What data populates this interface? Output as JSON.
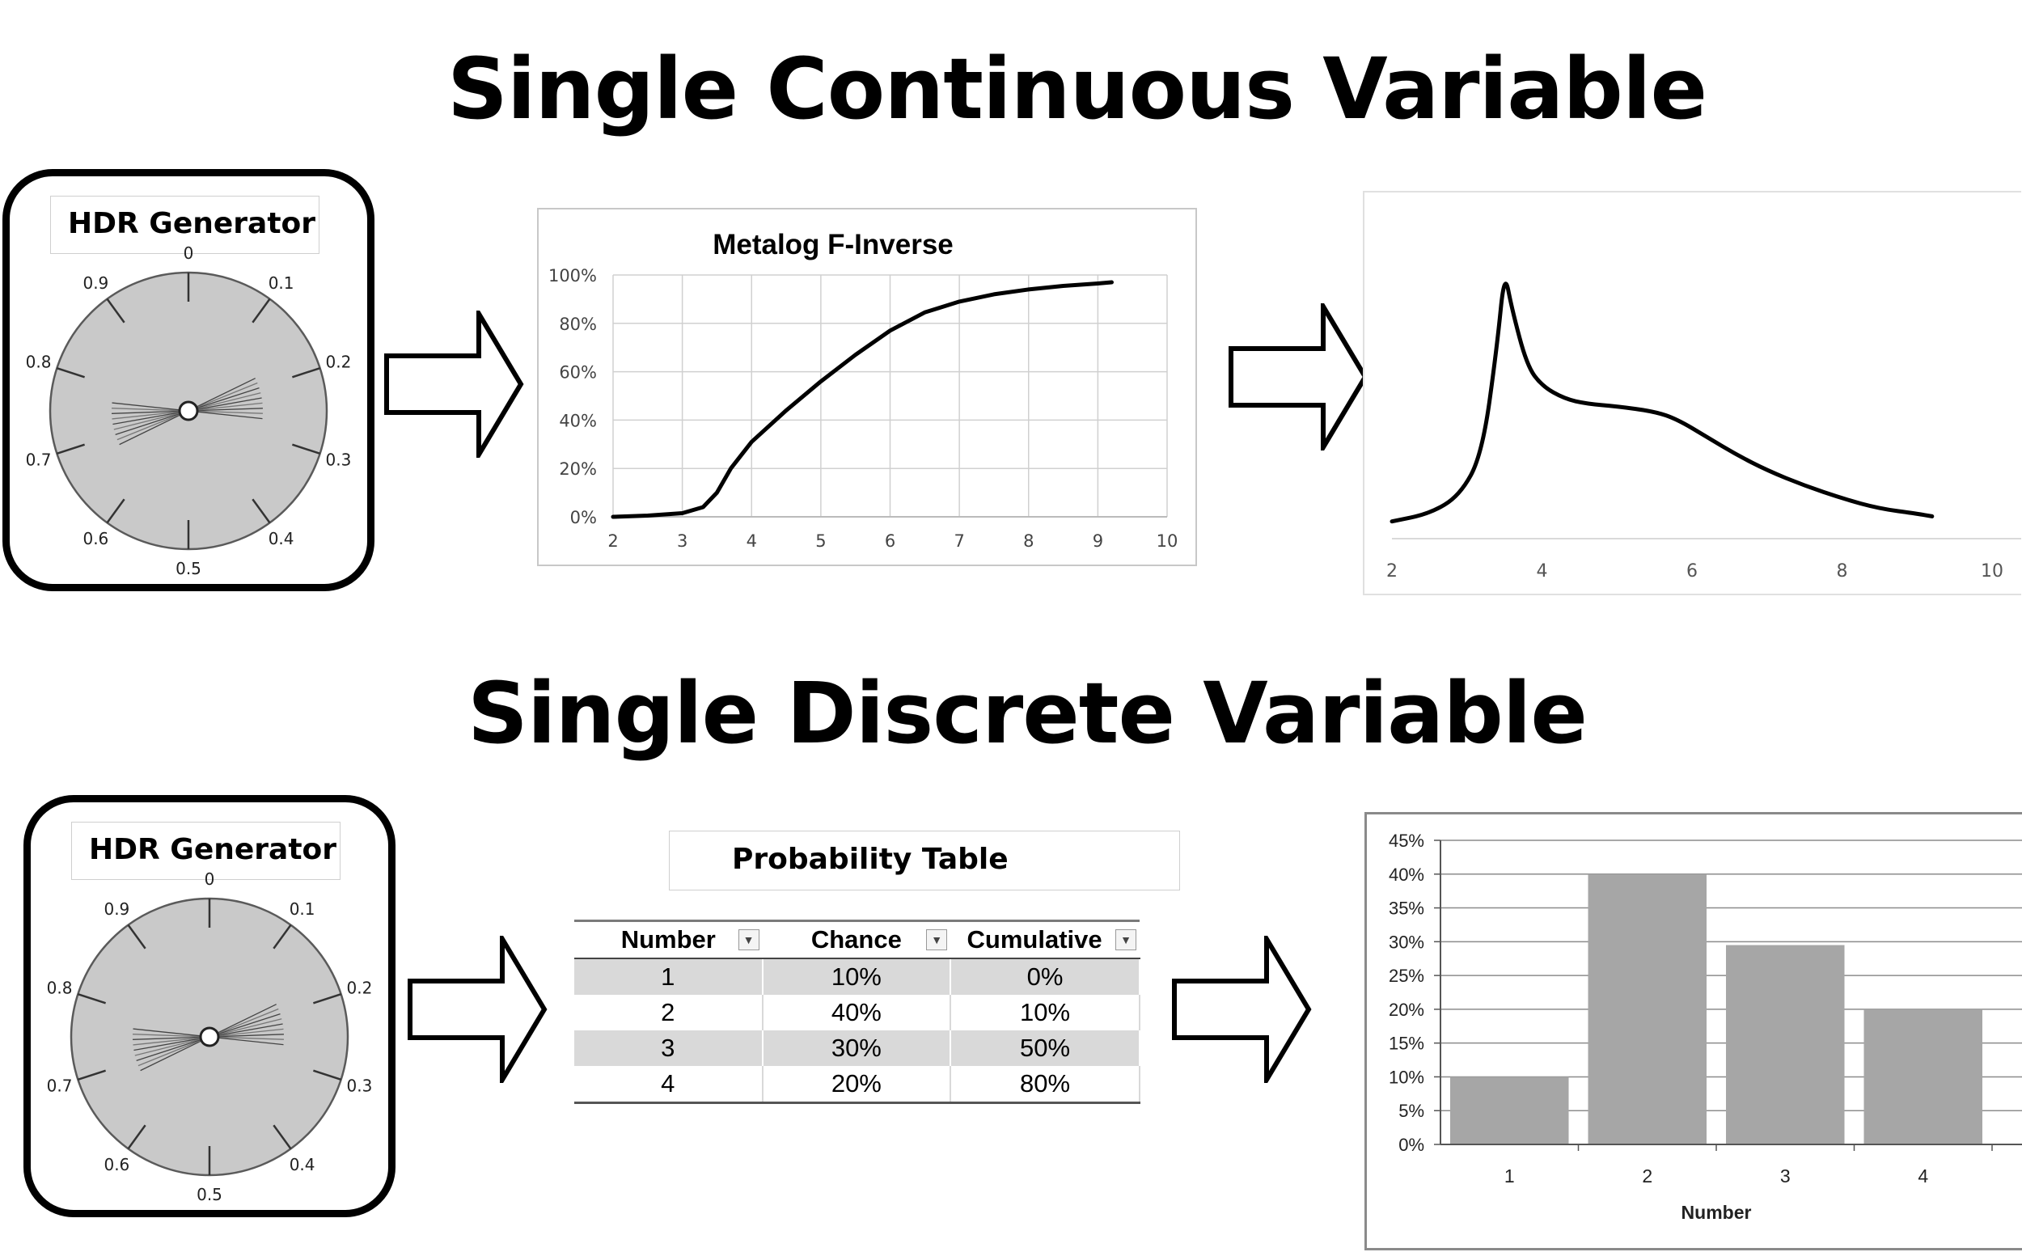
{
  "top": {
    "heading": "Single Continuous Variable",
    "generator": {
      "title": "HDR Generator",
      "dial_labels": [
        "0",
        "0.1",
        "0.2",
        "0.3",
        "0.4",
        "0.5",
        "0.6",
        "0.7",
        "0.8",
        "0.9"
      ]
    },
    "cdf_chart": {
      "title": "Metalog F-Inverse",
      "y_ticks": [
        "100%",
        "80%",
        "60%",
        "40%",
        "20%",
        "0%"
      ],
      "x_ticks": [
        "2",
        "3",
        "4",
        "5",
        "6",
        "7",
        "8",
        "9",
        "10"
      ]
    },
    "pdf_chart": {
      "x_ticks": [
        "2",
        "4",
        "6",
        "8",
        "10"
      ]
    }
  },
  "bottom": {
    "heading": "Single Discrete Variable",
    "generator": {
      "title": "HDR Generator",
      "dial_labels": [
        "0",
        "0.1",
        "0.2",
        "0.3",
        "0.4",
        "0.5",
        "0.6",
        "0.7",
        "0.8",
        "0.9"
      ]
    },
    "table": {
      "title": "Probability Table",
      "headers": [
        "Number",
        "Chance",
        "Cumulative"
      ],
      "rows": [
        [
          "1",
          "10%",
          "0%"
        ],
        [
          "2",
          "40%",
          "10%"
        ],
        [
          "3",
          "30%",
          "50%"
        ],
        [
          "4",
          "20%",
          "80%"
        ]
      ]
    },
    "bar_chart": {
      "y_ticks": [
        "45%",
        "40%",
        "35%",
        "30%",
        "25%",
        "20%",
        "15%",
        "10%",
        "5%",
        "0%"
      ],
      "categories": [
        "1",
        "2",
        "3",
        "4"
      ],
      "xlabel": "Number"
    }
  },
  "chart_data": [
    {
      "type": "line",
      "title": "Metalog F-Inverse",
      "xlim": [
        2,
        10
      ],
      "ylim": [
        0,
        1
      ],
      "y_format": "percent",
      "grid": true,
      "x": [
        2,
        2.5,
        3,
        3.3,
        3.5,
        3.7,
        4,
        4.5,
        5,
        5.5,
        6,
        6.5,
        7,
        7.5,
        8,
        8.5,
        9,
        9.2
      ],
      "y": [
        0,
        0.005,
        0.015,
        0.04,
        0.1,
        0.2,
        0.31,
        0.44,
        0.56,
        0.67,
        0.77,
        0.845,
        0.89,
        0.92,
        0.94,
        0.955,
        0.965,
        0.97
      ]
    },
    {
      "type": "line",
      "xlim": [
        2,
        10
      ],
      "grid": false,
      "x": [
        2,
        2.5,
        2.9,
        3.2,
        3.4,
        3.5,
        3.6,
        3.8,
        4,
        4.3,
        4.6,
        5,
        5.5,
        5.8,
        6.2,
        6.6,
        7,
        7.5,
        8,
        8.5,
        9,
        9.2
      ],
      "y": [
        0.02,
        0.05,
        0.12,
        0.28,
        0.7,
        1.0,
        0.85,
        0.63,
        0.55,
        0.5,
        0.48,
        0.47,
        0.45,
        0.42,
        0.35,
        0.28,
        0.22,
        0.16,
        0.11,
        0.07,
        0.05,
        0.04
      ]
    },
    {
      "type": "bar",
      "categories": [
        "1",
        "2",
        "3",
        "4"
      ],
      "values": [
        0.1,
        0.4,
        0.295,
        0.2
      ],
      "xlabel": "Number",
      "ylim": [
        0,
        0.45
      ],
      "y_format": "percent",
      "grid": true
    }
  ]
}
